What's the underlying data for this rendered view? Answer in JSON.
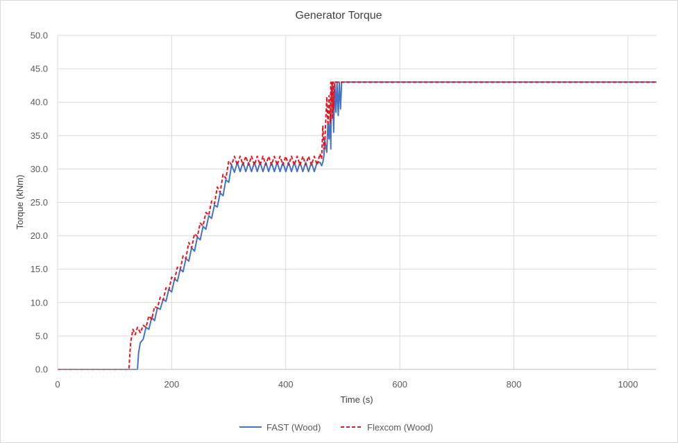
{
  "chart_data": {
    "type": "line",
    "title": "Generator Torque",
    "xlabel": "Time (s)",
    "ylabel": "Torque (kNm)",
    "xlim": [
      0,
      1050
    ],
    "ylim": [
      0,
      50
    ],
    "grid": true,
    "legend_position": "bottom",
    "x_ticks": [
      0,
      200,
      400,
      600,
      800,
      1000
    ],
    "x_tick_labels": [
      "0",
      "200",
      "400",
      "600",
      "800",
      "1000"
    ],
    "y_ticks": [
      0,
      5,
      10,
      15,
      20,
      25,
      30,
      35,
      40,
      45,
      50
    ],
    "y_tick_labels": [
      "0.0",
      "5.0",
      "10.0",
      "15.0",
      "20.0",
      "25.0",
      "30.0",
      "35.0",
      "40.0",
      "45.0",
      "50.0"
    ],
    "series": [
      {
        "name": "FAST (Wood)",
        "color": "#4472c4",
        "style": "solid",
        "x": [
          0,
          140,
          142,
          145,
          150,
          155,
          160,
          165,
          170,
          175,
          180,
          185,
          190,
          195,
          200,
          205,
          210,
          215,
          220,
          225,
          230,
          235,
          240,
          245,
          250,
          255,
          260,
          265,
          270,
          275,
          280,
          285,
          290,
          295,
          300,
          305,
          310,
          315,
          320,
          325,
          330,
          335,
          340,
          345,
          350,
          355,
          360,
          365,
          370,
          375,
          380,
          385,
          390,
          395,
          400,
          405,
          410,
          415,
          420,
          425,
          430,
          435,
          440,
          445,
          450,
          455,
          460,
          463,
          465,
          467,
          468,
          470,
          472,
          474,
          476,
          478,
          479,
          480,
          481,
          482,
          484,
          486,
          488,
          490,
          492,
          494,
          496,
          498,
          500,
          503,
          1050
        ],
        "y": [
          0,
          0,
          2.5,
          4.0,
          4.5,
          6.3,
          6.0,
          7.8,
          7.3,
          9.2,
          9.0,
          10.5,
          10.2,
          12.0,
          11.6,
          13.5,
          13.2,
          15.0,
          14.6,
          16.6,
          16.2,
          18.2,
          17.7,
          19.8,
          19.4,
          21.4,
          21.0,
          23.0,
          22.6,
          24.6,
          24.3,
          26.4,
          26.0,
          28.4,
          28.0,
          30.6,
          29.5,
          31.0,
          29.6,
          31.0,
          29.6,
          31.0,
          29.6,
          31.0,
          29.6,
          31.0,
          29.6,
          31.0,
          29.6,
          31.0,
          29.6,
          31.0,
          29.6,
          31.0,
          29.6,
          31.0,
          29.6,
          31.0,
          29.6,
          31.0,
          29.6,
          31.0,
          29.6,
          31.0,
          29.6,
          31.0,
          31.0,
          30.5,
          31.0,
          32.0,
          34.5,
          33.5,
          32.5,
          37.0,
          34.5,
          38.0,
          33.0,
          42.0,
          40.0,
          43.0,
          35.5,
          43.0,
          38.5,
          43.0,
          38.0,
          43.0,
          39.0,
          43.0,
          43.0,
          43.0,
          43.0
        ]
      },
      {
        "name": "Flexcom (Wood)",
        "color": "#e8141c",
        "style": "dashed",
        "x": [
          0,
          125,
          128,
          132,
          136,
          140,
          145,
          150,
          155,
          160,
          165,
          170,
          175,
          180,
          185,
          190,
          195,
          200,
          205,
          210,
          215,
          220,
          225,
          230,
          235,
          240,
          245,
          250,
          255,
          260,
          265,
          270,
          275,
          280,
          285,
          290,
          295,
          300,
          305,
          310,
          315,
          320,
          325,
          330,
          335,
          340,
          345,
          350,
          355,
          360,
          365,
          370,
          375,
          380,
          385,
          390,
          395,
          400,
          405,
          410,
          415,
          420,
          425,
          430,
          435,
          440,
          445,
          450,
          455,
          460,
          463,
          465,
          467,
          468,
          470,
          472,
          474,
          476,
          478,
          479,
          480,
          481,
          482,
          483,
          484,
          486,
          488,
          490,
          1050
        ],
        "y": [
          0,
          0,
          4.0,
          6.0,
          5.2,
          6.3,
          5.5,
          6.6,
          6.3,
          8.0,
          7.5,
          9.4,
          9.2,
          10.8,
          10.4,
          12.2,
          11.9,
          13.8,
          13.4,
          15.3,
          15.0,
          17.0,
          16.6,
          19.0,
          18.2,
          20.3,
          19.9,
          21.9,
          21.5,
          23.5,
          23.1,
          25.2,
          24.8,
          27.3,
          26.5,
          29.2,
          28.6,
          31.2,
          30.6,
          31.9,
          30.6,
          31.9,
          30.6,
          31.9,
          30.6,
          31.9,
          30.6,
          31.9,
          30.6,
          31.9,
          30.6,
          31.9,
          30.6,
          31.9,
          30.6,
          31.9,
          30.6,
          31.9,
          30.6,
          31.9,
          30.6,
          31.9,
          30.6,
          31.9,
          30.6,
          31.9,
          30.6,
          31.9,
          30.6,
          32.3,
          31.5,
          36.5,
          33.0,
          33.0,
          37.0,
          40.8,
          36.5,
          41.0,
          37.0,
          43.0,
          40.0,
          43.2,
          37.5,
          43.0,
          39.0,
          43.0,
          43.0,
          43.0,
          43.0
        ]
      }
    ]
  }
}
